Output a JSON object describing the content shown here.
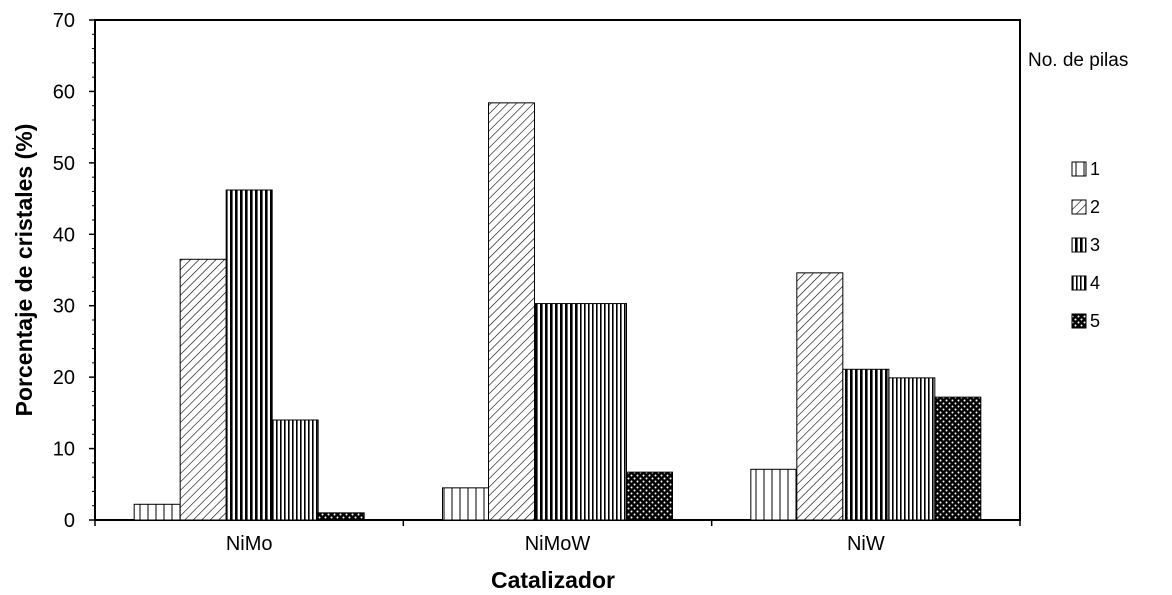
{
  "chart_data": {
    "type": "bar",
    "title": "",
    "xlabel": "Catalizador",
    "ylabel": "Porcentaje de cristales (%)",
    "ylim": [
      0,
      70
    ],
    "yticks": [
      "0",
      "10",
      "20",
      "30",
      "40",
      "50",
      "60",
      "70"
    ],
    "categories": [
      "NiMo",
      "NiMoW",
      "NiW"
    ],
    "legend_title": "No. de pilas",
    "legend_position": "right",
    "series": [
      {
        "name": "1",
        "values": [
          2.2,
          4.5,
          7.1
        ]
      },
      {
        "name": "2",
        "values": [
          36.5,
          58.4,
          34.6
        ]
      },
      {
        "name": "3",
        "values": [
          46.2,
          30.3,
          21.1
        ]
      },
      {
        "name": "4",
        "values": [
          14.0,
          30.3,
          19.9
        ]
      },
      {
        "name": "5",
        "values": [
          1.0,
          6.7,
          17.2
        ]
      }
    ]
  }
}
